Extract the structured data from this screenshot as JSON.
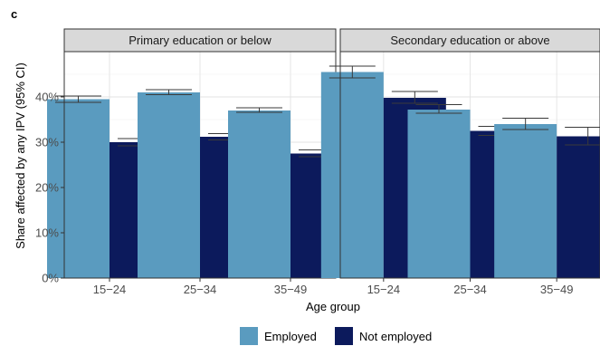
{
  "panel_label": "c",
  "chart_data": {
    "type": "bar",
    "ylabel": "Share affected by any IPV (95% CI)",
    "xlabel": "Age group",
    "ylim": [
      0,
      50
    ],
    "y_ticks": [
      0,
      10,
      20,
      30,
      40
    ],
    "y_tick_labels": [
      "0%",
      "10%",
      "20%",
      "30%",
      "40%"
    ],
    "grid": true,
    "legend": {
      "placement": "bottom",
      "entries": [
        {
          "name": "Employed",
          "color": "#5a9bbf"
        },
        {
          "name": "Not employed",
          "color": "#0c1a5c"
        }
      ]
    },
    "facets": [
      {
        "title": "Primary education or below",
        "categories": [
          "15−24",
          "25−34",
          "35−49"
        ],
        "series": [
          {
            "name": "Employed",
            "values": [
              39.5,
              41.0,
              37.0
            ],
            "ci": [
              [
                38.8,
                40.2
              ],
              [
                40.5,
                41.6
              ],
              [
                36.6,
                37.6
              ]
            ]
          },
          {
            "name": "Not employed",
            "values": [
              30.0,
              31.2,
              27.5
            ],
            "ci": [
              [
                29.2,
                30.8
              ],
              [
                30.5,
                31.9
              ],
              [
                26.8,
                28.3
              ]
            ]
          }
        ]
      },
      {
        "title": "Secondary education or above",
        "categories": [
          "15−24",
          "25−34",
          "35−49"
        ],
        "series": [
          {
            "name": "Employed",
            "values": [
              45.5,
              37.2,
              34.0
            ],
            "ci": [
              [
                44.2,
                46.8
              ],
              [
                36.4,
                38.3
              ],
              [
                32.8,
                35.3
              ]
            ]
          },
          {
            "name": "Not employed",
            "values": [
              39.8,
              32.5,
              31.3
            ],
            "ci": [
              [
                38.6,
                41.2
              ],
              [
                31.5,
                33.5
              ],
              [
                29.4,
                33.3
              ]
            ]
          }
        ]
      }
    ]
  }
}
